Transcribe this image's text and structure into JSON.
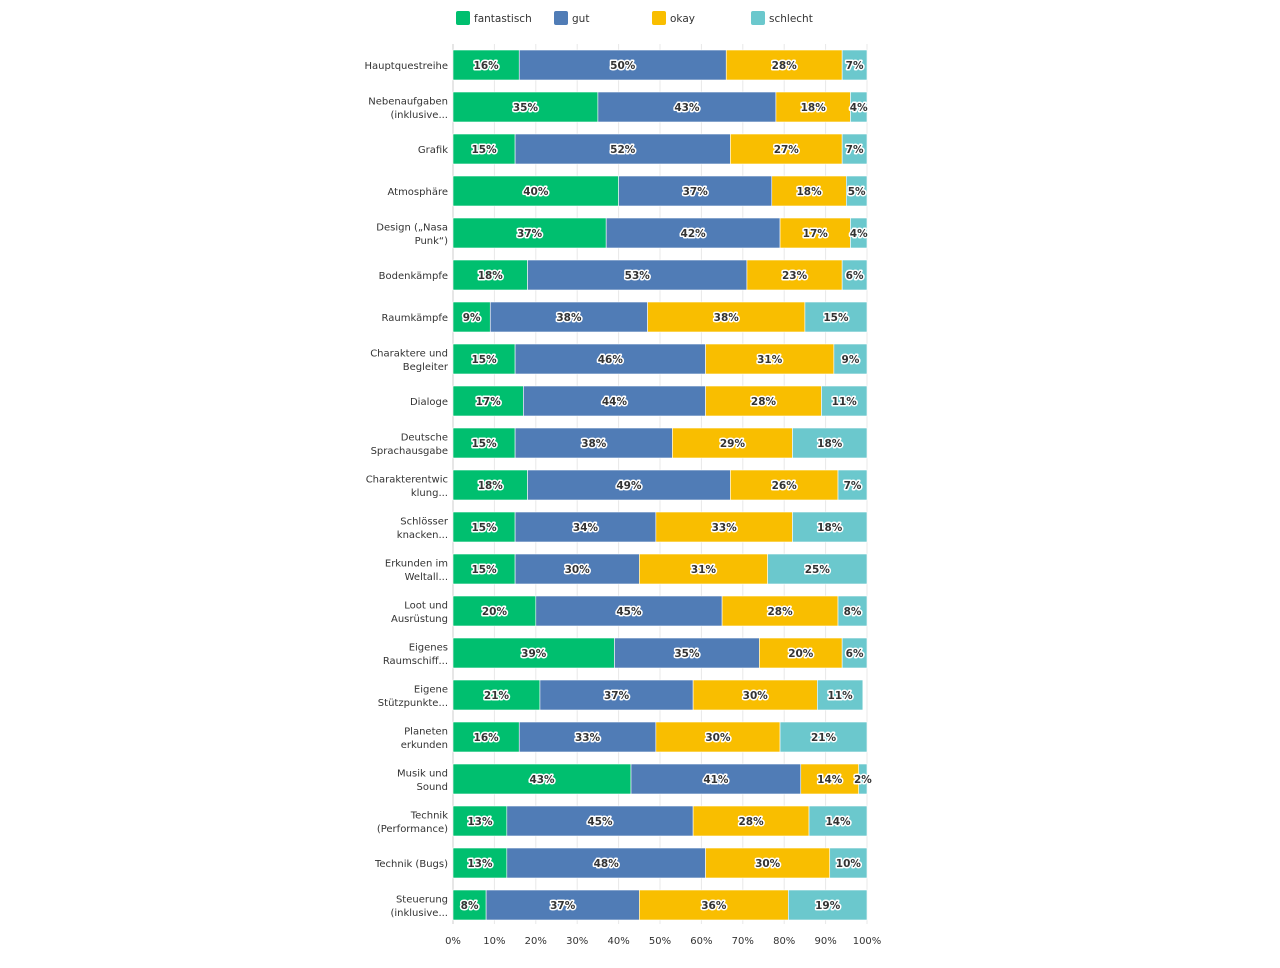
{
  "chart_data": {
    "type": "bar",
    "orientation": "horizontal",
    "stacked": true,
    "xlim": [
      0,
      100
    ],
    "x_ticks": [
      "0%",
      "10%",
      "20%",
      "30%",
      "40%",
      "50%",
      "60%",
      "70%",
      "80%",
      "90%",
      "100%"
    ],
    "grid": true,
    "legend_position": "top",
    "categories": [
      "Hauptquestreihe",
      "Nebenaufgaben (inklusive...",
      "Grafik",
      "Atmosphäre",
      "Design („Nasa Punk“)",
      "Bodenkämpfe",
      "Raumkämpfe",
      "Charaktere und Begleiter",
      "Dialoge",
      "Deutsche Sprachausgabe",
      "Charakterentwicklung...",
      "Schlösser knacken...",
      "Erkunden im Weltall...",
      "Loot und Ausrüstung",
      "Eigenes Raumschiff...",
      "Eigene Stützpunkte...",
      "Planeten erkunden",
      "Musik und Sound",
      "Technik (Performance)",
      "Technik (Bugs)",
      "Steuerung (inklusive..."
    ],
    "category_label_lines": [
      [
        "Hauptquestreihe"
      ],
      [
        "Nebenaufgaben",
        "(inklusive..."
      ],
      [
        "Grafik"
      ],
      [
        "Atmosphäre"
      ],
      [
        "Design („Nasa",
        "Punk“)"
      ],
      [
        "Bodenkämpfe"
      ],
      [
        "Raumkämpfe"
      ],
      [
        "Charaktere und",
        "Begleiter"
      ],
      [
        "Dialoge"
      ],
      [
        "Deutsche",
        "Sprachausgabe"
      ],
      [
        "Charakterentwic",
        "klung..."
      ],
      [
        "Schlösser",
        "knacken..."
      ],
      [
        "Erkunden im",
        "Weltall..."
      ],
      [
        "Loot und",
        "Ausrüstung"
      ],
      [
        "Eigenes",
        "Raumschiff..."
      ],
      [
        "Eigene",
        "Stützpunkte..."
      ],
      [
        "Planeten",
        "erkunden"
      ],
      [
        "Musik und",
        "Sound"
      ],
      [
        "Technik",
        "(Performance)"
      ],
      [
        "Technik (Bugs)"
      ],
      [
        "Steuerung",
        "(inklusive..."
      ]
    ],
    "series": [
      {
        "name": "fantastisch",
        "color": "#00BF6F",
        "values": [
          16,
          35,
          15,
          40,
          37,
          18,
          9,
          15,
          17,
          15,
          18,
          15,
          15,
          20,
          39,
          21,
          16,
          43,
          13,
          13,
          8
        ]
      },
      {
        "name": "gut",
        "color": "#507CB6",
        "values": [
          50,
          43,
          52,
          37,
          42,
          53,
          38,
          46,
          44,
          38,
          49,
          34,
          30,
          45,
          35,
          37,
          33,
          41,
          45,
          48,
          37
        ]
      },
      {
        "name": "okay",
        "color": "#F9BE00",
        "values": [
          28,
          18,
          27,
          18,
          17,
          23,
          38,
          31,
          28,
          29,
          26,
          33,
          31,
          28,
          20,
          30,
          30,
          14,
          28,
          30,
          36
        ]
      },
      {
        "name": "schlecht",
        "color": "#6BC8CD",
        "values": [
          7,
          4,
          7,
          5,
          4,
          6,
          15,
          9,
          11,
          18,
          7,
          18,
          25,
          8,
          6,
          11,
          21,
          2,
          14,
          10,
          19
        ]
      }
    ]
  }
}
